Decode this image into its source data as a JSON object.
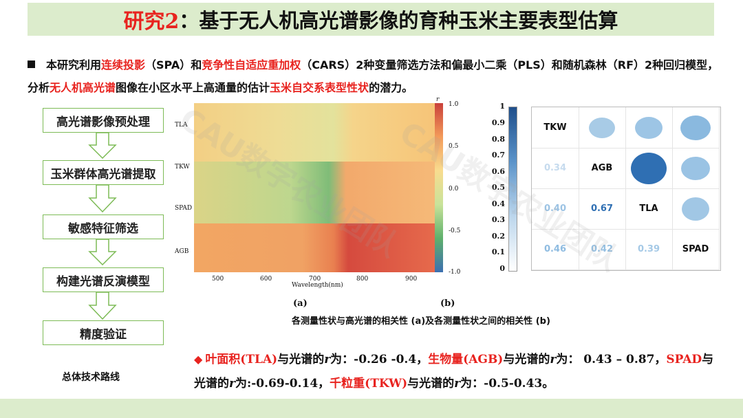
{
  "title": {
    "prefix": "研究2",
    "rest": "：基于无人机高光谱影像的育种玉米主要表型估算"
  },
  "intro": {
    "p1": "本研究利用",
    "r1": "连续投影",
    "p2": "（SPA）和",
    "r2": "竞争性自适应重加权",
    "p3": "（CARS）2种变量筛选方法和偏最小二乘（PLS）和随机森林（RF）2种回归模型，分析",
    "r3": "无人机高光谱",
    "p4": "图像在小区水平上高通量的估计",
    "r4": "玉米自交系表型性状",
    "p5": "的潜力。"
  },
  "flow": {
    "steps": [
      "高光谱影像预处理",
      "玉米群体高光谱提取",
      "敏感特征筛选",
      "构建光谱反演模型",
      "精度验证"
    ],
    "route_label": "总体技术路线"
  },
  "heatmap": {
    "ylabels": [
      "TLA",
      "TKW",
      "SPAD",
      "AGB"
    ],
    "xticks": [
      "500",
      "600",
      "700",
      "800",
      "900"
    ],
    "xlabel": "Wavelength(nm)",
    "cbar_title": "r",
    "cbar_ticks": [
      "1.0",
      "0.5",
      "0.0",
      "-0.5",
      "-1.0"
    ]
  },
  "corr": {
    "scale_ticks": [
      "1",
      "0.9",
      "0.8",
      "0.7",
      "0.6",
      "0.5",
      "0.4",
      "0.3",
      "0.2",
      "0.1",
      "0"
    ],
    "traits": [
      "TKW",
      "AGB",
      "TLA",
      "SPAD"
    ],
    "lower": [
      {
        "row": 1,
        "col": 0,
        "value": "0.34"
      },
      {
        "row": 2,
        "col": 0,
        "value": "0.40"
      },
      {
        "row": 2,
        "col": 1,
        "value": "0.67"
      },
      {
        "row": 3,
        "col": 0,
        "value": "0.46"
      },
      {
        "row": 3,
        "col": 1,
        "value": "0.42"
      },
      {
        "row": 3,
        "col": 2,
        "value": "0.39"
      }
    ]
  },
  "captions": {
    "a": "(a)",
    "b": "(b)",
    "main": "各测量性状与高光谱的相关性 (a)及各测量性状之间的相关性 (b)"
  },
  "result": {
    "bullet": "◆",
    "s1r": "叶面积(TLA)",
    "s1": "与光谱的",
    "rsym": "r",
    "s2": "为：-0.26 -0.4，",
    "s3r": "生物量(AGB)",
    "s3": "与光谱的",
    "s4": "为： 0.43 – 0.87，",
    "s5r": "SPAD",
    "s5": "与光谱的",
    "s6": "为:-0.69-0.14，",
    "s7r": "千粒重(TKW)",
    "s7": "与光谱的",
    "s8": "为：-0.5-0.43。"
  },
  "watermark": "CAU数字农业团队",
  "colors": {
    "accent": "#e8231f",
    "title_bg": "#dceccc",
    "flow_border": "#7dbb56",
    "corr_blue": "#2f6fb3"
  }
}
